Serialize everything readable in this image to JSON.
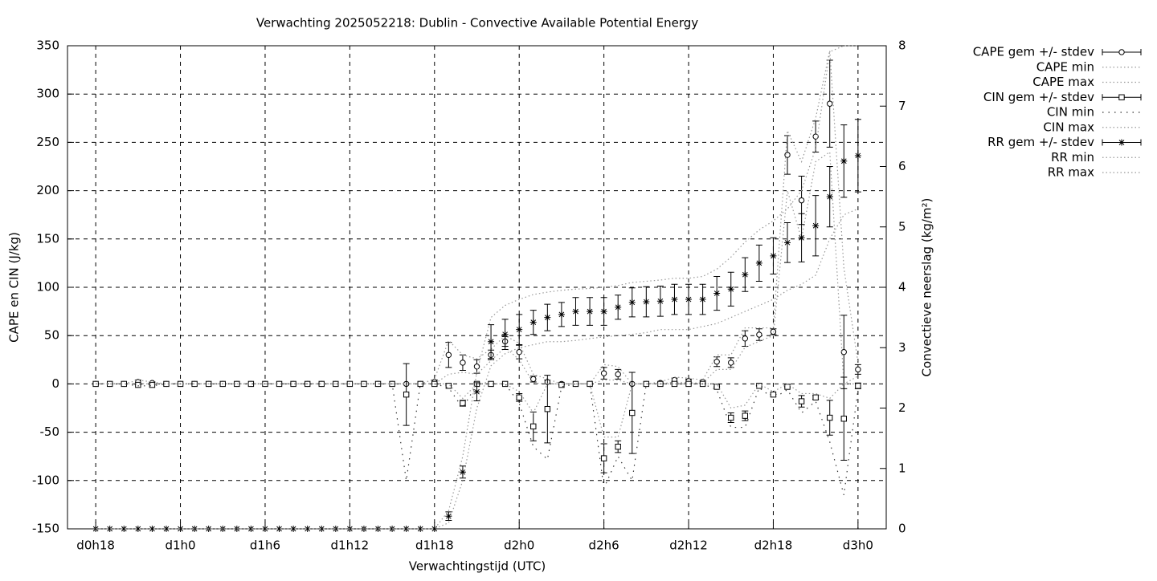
{
  "chart_data": {
    "type": "errorbar",
    "title": "Verwachting 2025052218: Dublin - Convective Available Potential Energy",
    "xlabel": "Verwachtingstijd (UTC)",
    "ylabel": "CAPE en CIN (J/kg)",
    "y2label": "Convectieve neerslag (kg/m²)",
    "xlim": [
      16,
      74
    ],
    "xticks": [
      {
        "value": 18,
        "label": "d0h18"
      },
      {
        "value": 24,
        "label": "d1h0"
      },
      {
        "value": 30,
        "label": "d1h6"
      },
      {
        "value": 36,
        "label": "d1h12"
      },
      {
        "value": 42,
        "label": "d1h18"
      },
      {
        "value": 48,
        "label": "d2h0"
      },
      {
        "value": 54,
        "label": "d2h6"
      },
      {
        "value": 60,
        "label": "d2h12"
      },
      {
        "value": 66,
        "label": "d2h18"
      },
      {
        "value": 72,
        "label": "d3h0"
      }
    ],
    "ylim": [
      -150,
      350
    ],
    "yticks": [
      -150,
      -100,
      -50,
      0,
      50,
      100,
      150,
      200,
      250,
      300,
      350
    ],
    "y2lim": [
      0,
      8
    ],
    "y2ticks": [
      0,
      1,
      2,
      3,
      4,
      5,
      6,
      7,
      8
    ],
    "grid": true,
    "legend": "outside-right",
    "x": [
      18,
      19,
      20,
      21,
      22,
      23,
      24,
      25,
      26,
      27,
      28,
      29,
      30,
      31,
      32,
      33,
      34,
      35,
      36,
      37,
      38,
      39,
      40,
      41,
      42,
      43,
      44,
      45,
      46,
      47,
      48,
      49,
      50,
      51,
      52,
      53,
      54,
      55,
      56,
      57,
      58,
      59,
      60,
      61,
      62,
      63,
      64,
      65,
      66,
      67,
      68,
      69,
      70,
      71,
      72
    ],
    "series": [
      {
        "name": "CAPE gem +/- stdev",
        "color": "#000000",
        "marker": "circle",
        "axis": "y",
        "values": [
          0,
          0,
          0,
          2,
          1,
          0,
          0,
          0,
          0,
          0,
          0,
          0,
          0,
          0,
          0,
          0,
          0,
          0,
          0,
          0,
          0,
          0,
          0,
          0,
          2,
          30,
          22,
          18,
          30,
          44,
          33,
          5,
          2,
          0,
          0,
          0,
          11,
          10,
          0,
          0,
          1,
          4,
          3,
          2,
          23,
          22,
          47,
          51,
          54,
          237,
          190,
          256,
          290,
          33,
          15
        ],
        "errors": [
          0,
          0,
          0,
          2,
          1,
          0,
          0,
          0,
          0,
          0,
          0,
          0,
          0,
          0,
          0,
          0,
          0,
          0,
          0,
          0,
          0,
          0,
          0,
          0,
          2,
          13,
          8,
          7,
          5,
          5,
          7,
          3,
          2,
          0,
          0,
          0,
          6,
          5,
          0,
          0,
          0,
          2,
          2,
          1,
          5,
          5,
          8,
          6,
          3,
          20,
          25,
          16,
          45,
          38,
          5
        ]
      },
      {
        "name": "CAPE min",
        "color": "#999999",
        "line": "dotted",
        "axis": "y",
        "values": [
          0,
          0,
          0,
          0,
          0,
          0,
          0,
          0,
          0,
          0,
          0,
          0,
          0,
          0,
          0,
          0,
          0,
          0,
          0,
          0,
          0,
          0,
          0,
          0,
          0,
          10,
          12,
          10,
          24,
          38,
          25,
          1,
          0,
          0,
          0,
          0,
          4,
          4,
          0,
          0,
          0,
          2,
          1,
          1,
          15,
          15,
          38,
          44,
          50,
          200,
          150,
          230,
          240,
          0,
          8
        ]
      },
      {
        "name": "CAPE max",
        "color": "#999999",
        "line": "dotted",
        "axis": "y",
        "values": [
          0,
          0,
          0,
          4,
          2,
          0,
          0,
          0,
          0,
          0,
          0,
          0,
          0,
          0,
          0,
          0,
          0,
          0,
          0,
          0,
          0,
          0,
          0,
          0,
          5,
          45,
          30,
          26,
          36,
          50,
          42,
          10,
          5,
          0,
          0,
          0,
          20,
          18,
          0,
          0,
          2,
          7,
          6,
          4,
          30,
          30,
          58,
          58,
          58,
          262,
          230,
          275,
          345,
          120,
          22
        ]
      },
      {
        "name": "CIN gem +/- stdev",
        "color": "#000000",
        "marker": "square",
        "axis": "y",
        "values": [
          0,
          0,
          0,
          -1,
          -1,
          0,
          0,
          0,
          0,
          0,
          0,
          0,
          0,
          0,
          0,
          0,
          0,
          0,
          0,
          0,
          0,
          0,
          -11,
          0,
          0,
          -2,
          -20,
          0,
          0,
          0,
          -14,
          -44,
          -26,
          -1,
          0,
          0,
          -77,
          -65,
          -30,
          0,
          0,
          0,
          0,
          0,
          -3,
          -35,
          -33,
          -2,
          -11,
          -3,
          -18,
          -14,
          -35,
          -36,
          -2
        ],
        "errors": [
          0,
          0,
          0,
          0,
          0,
          0,
          0,
          0,
          0,
          0,
          0,
          0,
          0,
          0,
          0,
          0,
          0,
          0,
          0,
          0,
          0,
          0,
          32,
          0,
          0,
          0,
          3,
          0,
          0,
          0,
          4,
          15,
          35,
          0,
          0,
          0,
          15,
          6,
          42,
          0,
          0,
          0,
          0,
          0,
          0,
          5,
          5,
          0,
          0,
          0,
          6,
          2,
          18,
          43,
          3
        ]
      },
      {
        "name": "CIN min",
        "color": "#555555",
        "line": "sparse",
        "axis": "y",
        "values": [
          0,
          0,
          0,
          -2,
          -2,
          0,
          0,
          0,
          0,
          0,
          0,
          0,
          0,
          0,
          0,
          0,
          0,
          0,
          0,
          0,
          0,
          0,
          -100,
          0,
          0,
          -4,
          -25,
          0,
          0,
          0,
          -20,
          -65,
          -78,
          -3,
          0,
          0,
          -108,
          -75,
          -100,
          0,
          0,
          0,
          0,
          0,
          -6,
          -45,
          -45,
          -4,
          -15,
          -6,
          -30,
          -18,
          -60,
          -115,
          -6
        ]
      },
      {
        "name": "CIN max",
        "color": "#999999",
        "line": "dotted",
        "axis": "y",
        "values": [
          0,
          0,
          0,
          0,
          0,
          0,
          0,
          0,
          0,
          0,
          0,
          0,
          0,
          0,
          0,
          0,
          0,
          0,
          0,
          0,
          0,
          0,
          0,
          0,
          0,
          0,
          -15,
          0,
          0,
          0,
          -8,
          -30,
          0,
          0,
          0,
          0,
          -55,
          -55,
          0,
          0,
          0,
          0,
          0,
          0,
          0,
          -25,
          -22,
          0,
          -8,
          0,
          -10,
          -10,
          -15,
          0,
          0
        ]
      },
      {
        "name": "RR gem +/- stdev",
        "color": "#000000",
        "marker": "asterisk",
        "axis": "y2",
        "values": [
          0,
          0,
          0,
          0,
          0,
          0,
          0,
          0,
          0,
          0,
          0,
          0,
          0,
          0,
          0,
          0,
          0,
          0,
          0,
          0,
          0,
          0,
          0,
          0,
          0,
          0.21,
          0.94,
          2.27,
          3.1,
          3.22,
          3.3,
          3.42,
          3.5,
          3.55,
          3.6,
          3.6,
          3.6,
          3.67,
          3.75,
          3.76,
          3.77,
          3.8,
          3.8,
          3.8,
          3.9,
          3.97,
          4.21,
          4.4,
          4.52,
          4.74,
          4.82,
          5.02,
          5.5,
          6.09,
          6.18
        ],
        "errors": [
          0,
          0,
          0,
          0,
          0,
          0,
          0,
          0,
          0,
          0,
          0,
          0,
          0,
          0,
          0,
          0,
          0,
          0,
          0,
          0,
          0,
          0,
          0,
          0,
          0,
          0.07,
          0.1,
          0.15,
          0.28,
          0.25,
          0.25,
          0.2,
          0.22,
          0.2,
          0.23,
          0.23,
          0.23,
          0.2,
          0.24,
          0.25,
          0.25,
          0.25,
          0.25,
          0.25,
          0.28,
          0.28,
          0.28,
          0.3,
          0.3,
          0.33,
          0.4,
          0.5,
          0.5,
          0.6,
          0.6
        ]
      },
      {
        "name": "RR min",
        "color": "#999999",
        "line": "dotted",
        "axis": "y2",
        "values": [
          0,
          0,
          0,
          0,
          0,
          0,
          0,
          0,
          0,
          0,
          0,
          0,
          0,
          0,
          0,
          0,
          0,
          0,
          0,
          0,
          0,
          0,
          0,
          0,
          0,
          0.1,
          0.8,
          2.0,
          2.7,
          2.9,
          3.0,
          3.05,
          3.1,
          3.1,
          3.12,
          3.15,
          3.18,
          3.2,
          3.22,
          3.25,
          3.3,
          3.3,
          3.3,
          3.35,
          3.4,
          3.5,
          3.6,
          3.7,
          3.8,
          3.95,
          4.05,
          4.2,
          4.8,
          5.2,
          5.3
        ]
      },
      {
        "name": "RR max",
        "color": "#999999",
        "line": "dotted",
        "axis": "y2",
        "values": [
          0,
          0,
          0,
          0,
          0,
          0,
          0,
          0,
          0,
          0,
          0,
          0,
          0,
          0,
          0,
          0,
          0,
          0,
          0,
          0,
          0,
          0,
          0,
          0,
          0,
          0.3,
          1.2,
          2.6,
          3.5,
          3.7,
          3.8,
          3.88,
          3.92,
          3.95,
          3.97,
          3.98,
          4.0,
          4.03,
          4.08,
          4.1,
          4.12,
          4.15,
          4.15,
          4.18,
          4.3,
          4.5,
          4.75,
          4.95,
          5.1,
          5.3,
          5.6,
          6.3,
          7.9,
          8.0,
          8.0
        ]
      }
    ]
  }
}
